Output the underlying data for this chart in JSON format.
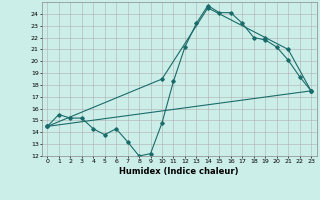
{
  "title": "",
  "xlabel": "Humidex (Indice chaleur)",
  "ylabel": "",
  "bg_color": "#cceee8",
  "grid_color": "#b0b0b0",
  "line_color": "#1a6b6b",
  "xlim": [
    -0.5,
    23.5
  ],
  "ylim": [
    12,
    25
  ],
  "xticks": [
    0,
    1,
    2,
    3,
    4,
    5,
    6,
    7,
    8,
    9,
    10,
    11,
    12,
    13,
    14,
    15,
    16,
    17,
    18,
    19,
    20,
    21,
    22,
    23
  ],
  "yticks": [
    12,
    13,
    14,
    15,
    16,
    17,
    18,
    19,
    20,
    21,
    22,
    23,
    24
  ],
  "line1_x": [
    0,
    1,
    2,
    3,
    4,
    5,
    6,
    7,
    8,
    9,
    10,
    11,
    12,
    13,
    14,
    15,
    16,
    17,
    18,
    19,
    20,
    21,
    22,
    23
  ],
  "line1_y": [
    14.5,
    15.5,
    15.2,
    15.2,
    14.3,
    13.8,
    14.3,
    13.2,
    12.0,
    12.2,
    14.8,
    18.3,
    21.2,
    23.2,
    24.7,
    24.1,
    24.1,
    23.2,
    22.0,
    21.8,
    21.2,
    20.1,
    18.7,
    17.5
  ],
  "line2_x": [
    0,
    23
  ],
  "line2_y": [
    14.5,
    17.5
  ],
  "line3_x": [
    0,
    10,
    14,
    19,
    21,
    23
  ],
  "line3_y": [
    14.5,
    18.5,
    24.5,
    22.0,
    21.0,
    17.5
  ]
}
